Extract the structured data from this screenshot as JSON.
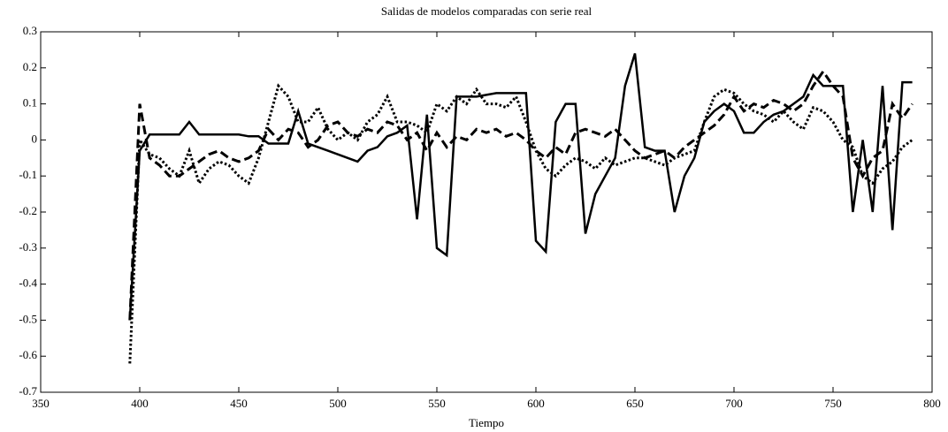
{
  "chart_data": {
    "type": "line",
    "title": "Salidas de modelos comparadas con serie real",
    "x_label": "Tiempo",
    "x": [
      395,
      400,
      405,
      410,
      415,
      420,
      425,
      430,
      435,
      440,
      445,
      450,
      455,
      460,
      465,
      470,
      475,
      480,
      485,
      490,
      495,
      500,
      505,
      510,
      515,
      520,
      525,
      530,
      535,
      540,
      545,
      550,
      555,
      560,
      565,
      570,
      575,
      580,
      585,
      590,
      595,
      600,
      605,
      610,
      615,
      620,
      625,
      630,
      635,
      640,
      645,
      650,
      655,
      660,
      665,
      670,
      675,
      680,
      685,
      690,
      695,
      700,
      705,
      710,
      715,
      720,
      725,
      730,
      735,
      740,
      745,
      750,
      755,
      760,
      765,
      770,
      775,
      780,
      785,
      790
    ],
    "series": [
      {
        "color": "#000000",
        "style": "solid",
        "values": [
          -0.5,
          -0.03,
          0.015,
          0.015,
          0.015,
          0.015,
          0.05,
          0.015,
          0.015,
          0.015,
          0.015,
          0.015,
          0.01,
          0.01,
          -0.01,
          -0.01,
          -0.01,
          0.08,
          -0.01,
          -0.02,
          -0.03,
          -0.04,
          -0.05,
          -0.06,
          -0.03,
          -0.02,
          0.01,
          0.02,
          0.04,
          -0.22,
          0.07,
          -0.3,
          -0.32,
          0.12,
          0.12,
          0.12,
          0.125,
          0.13,
          0.13,
          0.13,
          0.13,
          -0.28,
          -0.31,
          0.05,
          0.1,
          0.1,
          -0.26,
          -0.15,
          -0.1,
          -0.05,
          0.15,
          0.24,
          -0.02,
          -0.03,
          -0.03,
          -0.2,
          -0.1,
          -0.05,
          0.05,
          0.08,
          0.1,
          0.08,
          0.02,
          0.02,
          0.05,
          0.07,
          0.08,
          0.1,
          0.12,
          0.18,
          0.15,
          0.15,
          0.15,
          -0.2,
          0.0,
          -0.2,
          0.15,
          -0.25,
          0.16,
          0.16
        ]
      },
      {
        "color": "#000000",
        "style": "dashed",
        "values": [
          -0.5,
          0.1,
          -0.05,
          -0.07,
          -0.1,
          -0.1,
          -0.08,
          -0.06,
          -0.04,
          -0.03,
          -0.05,
          -0.06,
          -0.05,
          -0.03,
          0.03,
          0.0,
          0.03,
          0.02,
          -0.02,
          0.0,
          0.04,
          0.05,
          0.02,
          0.01,
          0.03,
          0.02,
          0.05,
          0.04,
          0.0,
          0.02,
          -0.03,
          0.02,
          -0.02,
          0.01,
          0.0,
          0.03,
          0.02,
          0.03,
          0.01,
          0.02,
          0.0,
          -0.03,
          -0.05,
          -0.02,
          -0.04,
          0.02,
          0.03,
          0.02,
          0.01,
          0.03,
          0.0,
          -0.03,
          -0.05,
          -0.04,
          -0.03,
          -0.05,
          -0.02,
          0.0,
          0.02,
          0.04,
          0.07,
          0.12,
          0.08,
          0.1,
          0.09,
          0.11,
          0.1,
          0.08,
          0.1,
          0.15,
          0.19,
          0.15,
          0.12,
          -0.05,
          -0.1,
          -0.05,
          -0.03,
          0.1,
          0.06,
          0.1
        ]
      },
      {
        "color": "#000000",
        "style": "dotted",
        "values": [
          -0.62,
          0.0,
          -0.04,
          -0.05,
          -0.08,
          -0.1,
          -0.03,
          -0.12,
          -0.08,
          -0.06,
          -0.07,
          -0.1,
          -0.12,
          -0.05,
          0.05,
          0.15,
          0.12,
          0.05,
          0.05,
          0.09,
          0.03,
          0.0,
          0.02,
          0.0,
          0.05,
          0.07,
          0.12,
          0.05,
          0.05,
          0.04,
          0.02,
          0.1,
          0.08,
          0.12,
          0.1,
          0.14,
          0.1,
          0.1,
          0.09,
          0.12,
          0.05,
          -0.03,
          -0.08,
          -0.1,
          -0.07,
          -0.05,
          -0.06,
          -0.08,
          -0.05,
          -0.07,
          -0.06,
          -0.05,
          -0.05,
          -0.06,
          -0.07,
          -0.05,
          -0.04,
          -0.03,
          0.05,
          0.12,
          0.14,
          0.13,
          0.1,
          0.08,
          0.07,
          0.05,
          0.08,
          0.05,
          0.03,
          0.09,
          0.08,
          0.05,
          0.0,
          -0.02,
          -0.1,
          -0.12,
          -0.08,
          -0.06,
          -0.02,
          0.0
        ]
      }
    ],
    "xlim": [
      350,
      800
    ],
    "xticks": [
      350,
      400,
      450,
      500,
      550,
      600,
      650,
      700,
      750,
      800
    ],
    "ylim": [
      -0.7,
      0.3
    ],
    "yticks": [
      -0.7,
      -0.6,
      -0.5,
      -0.4,
      -0.3,
      -0.2,
      -0.1,
      0,
      0.1,
      0.2,
      0.3
    ]
  }
}
